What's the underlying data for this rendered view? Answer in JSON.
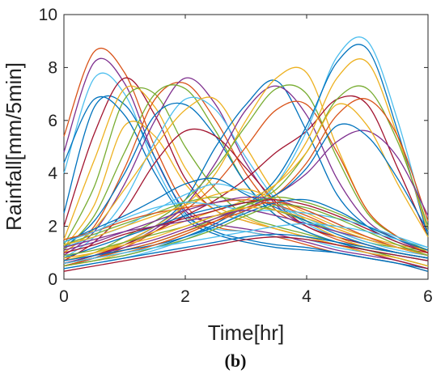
{
  "caption": "(b)",
  "chart_data": {
    "type": "line",
    "xlabel": "Time[hr]",
    "ylabel": "Rainfall[mm/5min]",
    "xlim": [
      0,
      6
    ],
    "ylim": [
      0,
      10
    ],
    "xticks": [
      "0",
      "2",
      "4",
      "6"
    ],
    "yticks": [
      "0",
      "2",
      "4",
      "6",
      "8",
      "10"
    ],
    "grid": false,
    "legend": "none",
    "x": [
      0,
      0.5,
      1,
      1.5,
      2,
      2.5,
      3,
      3.5,
      4,
      4.5,
      5,
      5.5,
      6
    ],
    "series": [
      {
        "color": "#D95319",
        "values": [
          5.4,
          8.6,
          7.8,
          5.0,
          2.8,
          2.0,
          1.8,
          1.6,
          1.3,
          1.0,
          0.8,
          0.6,
          0.3
        ]
      },
      {
        "color": "#7E2F8E",
        "values": [
          4.8,
          8.2,
          7.4,
          4.6,
          2.6,
          2.1,
          1.9,
          1.7,
          1.4,
          1.1,
          0.9,
          0.7,
          0.4
        ]
      },
      {
        "color": "#4DBEEE",
        "values": [
          4.0,
          7.6,
          7.0,
          4.3,
          2.4,
          1.9,
          1.8,
          1.6,
          1.5,
          1.2,
          1.0,
          0.8,
          0.5
        ]
      },
      {
        "color": "#0072BD",
        "values": [
          2.5,
          6.5,
          6.6,
          4.6,
          2.5,
          1.8,
          1.5,
          1.3,
          1.2,
          1.0,
          0.8,
          0.6,
          0.4
        ]
      },
      {
        "color": "#A2142F",
        "values": [
          2.0,
          5.5,
          7.6,
          6.2,
          3.8,
          2.6,
          2.2,
          1.9,
          1.6,
          1.3,
          1.0,
          0.7,
          0.4
        ]
      },
      {
        "color": "#EDB120",
        "values": [
          1.5,
          4.5,
          7.2,
          6.5,
          4.2,
          2.8,
          2.3,
          1.9,
          1.6,
          1.3,
          1.1,
          0.8,
          0.5
        ]
      },
      {
        "color": "#77AC30",
        "values": [
          1.3,
          3.5,
          6.8,
          7.0,
          5.0,
          3.4,
          2.4,
          2.0,
          1.7,
          1.4,
          1.1,
          0.8,
          0.5
        ]
      },
      {
        "color": "#EDB120",
        "values": [
          1.2,
          2.8,
          5.8,
          5.4,
          3.6,
          2.6,
          2.2,
          1.9,
          1.6,
          1.3,
          1.0,
          0.8,
          0.5
        ]
      },
      {
        "color": "#0072BD",
        "values": [
          4.4,
          6.8,
          6.2,
          4.0,
          2.3,
          1.7,
          1.4,
          1.2,
          1.1,
          1.0,
          0.8,
          0.6,
          0.3
        ]
      },
      {
        "color": "#D95319",
        "values": [
          1.0,
          2.0,
          4.2,
          6.8,
          7.4,
          6.0,
          4.0,
          2.6,
          2.0,
          1.5,
          1.2,
          1.0,
          0.8
        ]
      },
      {
        "color": "#7E2F8E",
        "values": [
          0.9,
          1.8,
          3.6,
          6.0,
          7.6,
          6.6,
          4.4,
          2.8,
          2.0,
          1.6,
          1.3,
          1.0,
          0.8
        ]
      },
      {
        "color": "#77AC30",
        "values": [
          1.1,
          2.4,
          4.8,
          7.0,
          7.2,
          5.6,
          3.6,
          2.4,
          1.8,
          1.4,
          1.1,
          0.9,
          0.7
        ]
      },
      {
        "color": "#4DBEEE",
        "values": [
          0.8,
          1.6,
          3.0,
          5.2,
          6.8,
          6.4,
          4.6,
          3.0,
          2.1,
          1.6,
          1.3,
          1.0,
          0.8
        ]
      },
      {
        "color": "#0072BD",
        "values": [
          1.2,
          2.2,
          4.0,
          6.2,
          6.6,
          5.4,
          3.6,
          2.4,
          1.8,
          1.4,
          1.1,
          0.9,
          0.7
        ]
      },
      {
        "color": "#A2142F",
        "values": [
          0.7,
          1.4,
          2.6,
          4.4,
          5.6,
          5.4,
          4.2,
          2.9,
          2.0,
          1.6,
          1.3,
          1.0,
          0.8
        ]
      },
      {
        "color": "#EDB120",
        "values": [
          1.0,
          1.9,
          3.4,
          5.0,
          6.4,
          6.8,
          5.0,
          3.2,
          2.2,
          1.6,
          1.2,
          1.0,
          0.8
        ]
      },
      {
        "color": "#0072BD",
        "values": [
          0.6,
          0.9,
          1.4,
          2.0,
          3.0,
          5.0,
          6.6,
          7.5,
          5.6,
          3.2,
          2.0,
          1.4,
          1.0
        ]
      },
      {
        "color": "#7E2F8E",
        "values": [
          0.5,
          0.8,
          1.3,
          1.9,
          2.8,
          4.4,
          6.4,
          7.3,
          6.2,
          3.8,
          2.2,
          1.5,
          1.0
        ]
      },
      {
        "color": "#EDB120",
        "values": [
          0.6,
          0.9,
          1.4,
          2.0,
          2.8,
          4.0,
          6.0,
          7.6,
          7.8,
          5.0,
          2.6,
          1.6,
          1.0
        ]
      },
      {
        "color": "#77AC30",
        "values": [
          0.7,
          1.0,
          1.6,
          2.2,
          3.0,
          4.2,
          5.8,
          7.2,
          7.0,
          4.6,
          2.5,
          1.6,
          1.1
        ]
      },
      {
        "color": "#D95319",
        "values": [
          0.5,
          0.8,
          1.2,
          1.8,
          2.6,
          3.6,
          5.0,
          6.4,
          6.6,
          4.8,
          2.6,
          1.6,
          1.0
        ]
      },
      {
        "color": "#A2142F",
        "values": [
          0.6,
          0.9,
          1.3,
          1.8,
          2.4,
          3.0,
          3.8,
          4.8,
          5.6,
          6.8,
          6.6,
          4.2,
          1.6
        ]
      },
      {
        "color": "#4DBEEE",
        "values": [
          0.4,
          0.6,
          0.8,
          1.1,
          1.5,
          2.0,
          2.6,
          3.6,
          5.6,
          8.4,
          9.0,
          6.0,
          1.8
        ]
      },
      {
        "color": "#0072BD",
        "values": [
          0.5,
          0.7,
          0.9,
          1.2,
          1.6,
          2.1,
          2.8,
          3.8,
          5.8,
          8.2,
          8.7,
          5.6,
          1.6
        ]
      },
      {
        "color": "#EDB120",
        "values": [
          0.5,
          0.7,
          1.0,
          1.3,
          1.7,
          2.2,
          2.8,
          3.6,
          5.2,
          7.6,
          8.2,
          5.4,
          1.8
        ]
      },
      {
        "color": "#77AC30",
        "values": [
          0.6,
          0.8,
          1.1,
          1.4,
          1.8,
          2.3,
          2.8,
          3.4,
          4.8,
          6.8,
          7.2,
          5.2,
          2.0
        ]
      },
      {
        "color": "#D95319",
        "values": [
          0.5,
          0.8,
          1.1,
          1.4,
          1.8,
          2.2,
          2.6,
          3.2,
          4.4,
          6.2,
          6.8,
          5.4,
          2.2
        ]
      },
      {
        "color": "#7E2F8E",
        "values": [
          0.6,
          0.9,
          1.2,
          1.5,
          1.9,
          2.3,
          2.7,
          3.2,
          4.0,
          5.2,
          5.6,
          4.6,
          2.4
        ]
      },
      {
        "color": "#EDB120",
        "values": [
          0.7,
          1.0,
          1.4,
          1.8,
          2.2,
          2.6,
          3.0,
          3.6,
          4.8,
          6.6,
          5.8,
          3.6,
          1.6
        ]
      },
      {
        "color": "#0072BD",
        "values": [
          0.8,
          1.2,
          1.6,
          2.0,
          2.4,
          2.7,
          2.9,
          3.2,
          4.2,
          5.8,
          5.4,
          3.8,
          1.8
        ]
      },
      {
        "color": "#77AC30",
        "values": [
          1.3,
          1.7,
          2.1,
          2.5,
          2.9,
          3.1,
          2.9,
          2.6,
          2.2,
          1.8,
          1.4,
          1.2,
          1.1
        ]
      },
      {
        "color": "#4DBEEE",
        "values": [
          1.2,
          1.6,
          2.0,
          2.6,
          3.2,
          3.6,
          3.3,
          2.8,
          2.3,
          1.8,
          1.4,
          1.1,
          0.9
        ]
      },
      {
        "color": "#0072BD",
        "values": [
          1.4,
          1.9,
          2.4,
          3.0,
          3.6,
          3.8,
          3.2,
          2.7,
          2.2,
          1.7,
          1.3,
          1.0,
          0.8
        ]
      },
      {
        "color": "#D95319",
        "values": [
          1.5,
          1.8,
          2.2,
          2.5,
          2.7,
          2.9,
          3.0,
          2.8,
          2.4,
          1.9,
          1.5,
          1.2,
          1.0
        ]
      },
      {
        "color": "#7E2F8E",
        "values": [
          1.1,
          1.4,
          1.8,
          2.2,
          2.6,
          2.9,
          3.1,
          3.0,
          2.6,
          2.1,
          1.6,
          1.2,
          0.9
        ]
      },
      {
        "color": "#EDB120",
        "values": [
          1.3,
          1.6,
          2.0,
          2.4,
          2.8,
          3.2,
          3.4,
          3.0,
          2.5,
          2.0,
          1.6,
          1.3,
          1.1
        ]
      },
      {
        "color": "#A2142F",
        "values": [
          1.0,
          1.3,
          1.7,
          2.0,
          2.3,
          2.6,
          2.9,
          3.0,
          2.8,
          2.4,
          1.9,
          1.4,
          1.0
        ]
      },
      {
        "color": "#77AC30",
        "values": [
          0.9,
          1.1,
          1.4,
          1.7,
          2.0,
          2.4,
          2.8,
          3.1,
          2.9,
          2.5,
          2.0,
          1.5,
          1.1
        ]
      },
      {
        "color": "#4DBEEE",
        "values": [
          1.4,
          1.8,
          2.3,
          2.7,
          2.9,
          2.8,
          2.6,
          2.6,
          2.5,
          2.3,
          2.0,
          1.6,
          1.2
        ]
      },
      {
        "color": "#0072BD",
        "values": [
          0.7,
          0.9,
          1.1,
          1.3,
          1.6,
          2.0,
          2.5,
          2.9,
          3.0,
          2.6,
          2.0,
          1.5,
          1.1
        ]
      },
      {
        "color": "#D95319",
        "values": [
          0.6,
          0.8,
          1.0,
          1.3,
          1.7,
          2.2,
          2.7,
          2.9,
          2.6,
          2.1,
          1.6,
          1.2,
          0.9
        ]
      },
      {
        "color": "#7E2F8E",
        "values": [
          1.2,
          1.5,
          1.8,
          2.0,
          2.2,
          2.4,
          2.6,
          2.4,
          2.1,
          1.8,
          1.5,
          1.2,
          0.9
        ]
      },
      {
        "color": "#EDB120",
        "values": [
          0.8,
          1.0,
          1.3,
          1.6,
          2.0,
          2.4,
          2.7,
          2.6,
          2.3,
          1.9,
          1.5,
          1.2,
          0.9
        ]
      },
      {
        "color": "#77AC30",
        "values": [
          0.5,
          0.7,
          0.9,
          1.2,
          1.5,
          1.9,
          2.4,
          2.8,
          2.7,
          2.3,
          1.8,
          1.3,
          0.9
        ]
      },
      {
        "color": "#0072BD",
        "values": [
          0.4,
          0.6,
          0.8,
          1.0,
          1.2,
          1.4,
          1.6,
          1.7,
          1.6,
          1.4,
          1.2,
          1.0,
          0.8
        ]
      },
      {
        "color": "#A2142F",
        "values": [
          0.3,
          0.5,
          0.7,
          0.9,
          1.1,
          1.3,
          1.5,
          1.6,
          1.5,
          1.3,
          1.1,
          0.9,
          0.7
        ]
      },
      {
        "color": "#4DBEEE",
        "values": [
          0.6,
          0.8,
          1.0,
          1.2,
          1.4,
          1.6,
          1.8,
          2.0,
          2.1,
          2.0,
          1.8,
          1.5,
          1.2
        ]
      }
    ]
  }
}
